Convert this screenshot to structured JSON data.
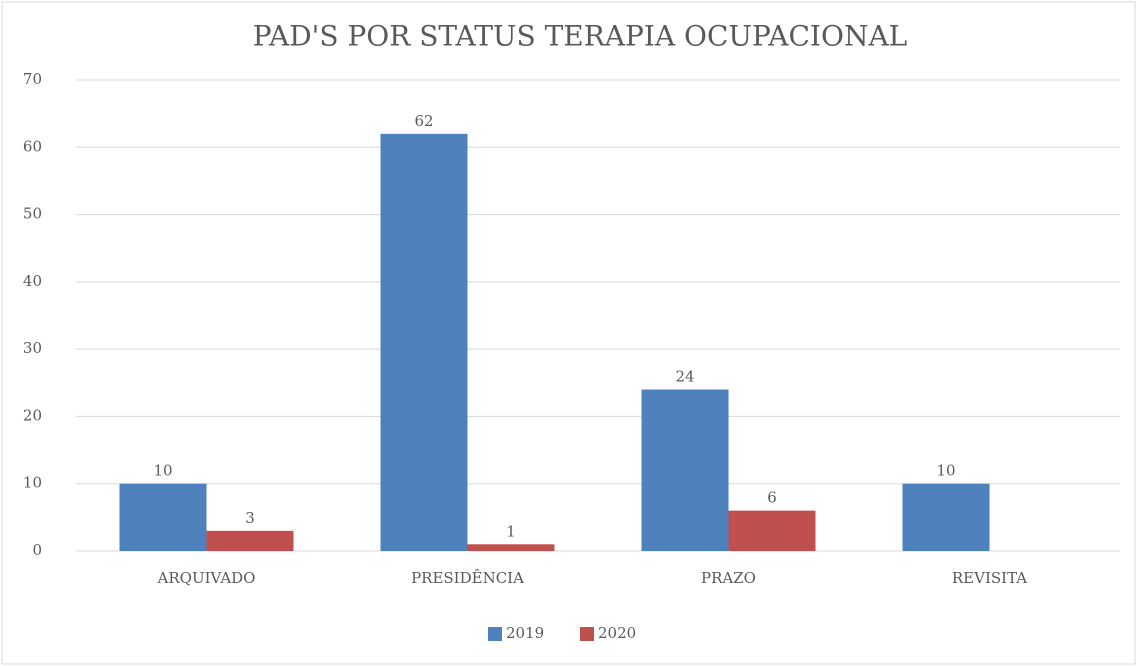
{
  "chart_data": {
    "type": "bar",
    "title": "PAD'S POR STATUS TERAPIA OCUPACIONAL",
    "categories": [
      "ARQUIVADO",
      "PRESIDÊNCIA",
      "PRAZO",
      "REVISITA"
    ],
    "series": [
      {
        "name": "2019",
        "color": "#4f81bd",
        "values": [
          10,
          62,
          24,
          10
        ]
      },
      {
        "name": "2020",
        "color": "#c0504d",
        "values": [
          3,
          1,
          6,
          null
        ]
      }
    ],
    "ylim": [
      0,
      70
    ],
    "yticks": [
      0,
      10,
      20,
      30,
      40,
      50,
      60,
      70
    ],
    "grid": true,
    "legend": "bottom"
  }
}
